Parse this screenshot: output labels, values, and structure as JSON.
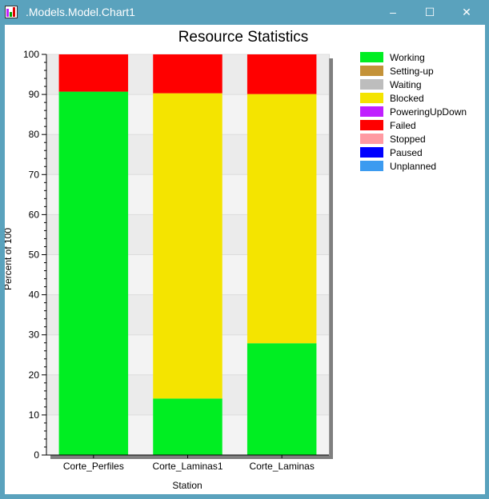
{
  "window": {
    "title": ".Models.Model.Chart1",
    "minimize_glyph": "–",
    "maximize_glyph": "☐",
    "close_glyph": "✕"
  },
  "chart_data": {
    "type": "bar",
    "stacked": true,
    "title": "Resource Statistics",
    "xlabel": "Station",
    "ylabel": "Percent of 100",
    "ylim": [
      0,
      100
    ],
    "yticks": [
      0,
      10,
      20,
      30,
      40,
      50,
      60,
      70,
      80,
      90,
      100
    ],
    "categories": [
      "Corte_Perfiles",
      "Corte_Laminas1",
      "Corte_Laminas"
    ],
    "series": [
      {
        "name": "Working",
        "color": "#00ee22",
        "values": [
          90.7,
          14.1,
          27.9
        ]
      },
      {
        "name": "Setting-up",
        "color": "#c49238",
        "values": [
          0,
          0,
          0
        ]
      },
      {
        "name": "Waiting",
        "color": "#bdbdbd",
        "values": [
          0,
          0,
          0
        ]
      },
      {
        "name": "Blocked",
        "color": "#f4e400",
        "values": [
          0,
          76.2,
          62.2
        ]
      },
      {
        "name": "PoweringUpDown",
        "color": "#c01fff",
        "values": [
          0,
          0,
          0
        ]
      },
      {
        "name": "Failed",
        "color": "#ff0000",
        "values": [
          9.3,
          9.7,
          9.9
        ]
      },
      {
        "name": "Stopped",
        "color": "#ff9aa2",
        "values": [
          0,
          0,
          0
        ]
      },
      {
        "name": "Paused",
        "color": "#0000ff",
        "values": [
          0,
          0,
          0
        ]
      },
      {
        "name": "Unplanned",
        "color": "#3c9bf0",
        "values": [
          0,
          0,
          0
        ]
      }
    ],
    "grid": true,
    "legend_position": "right"
  }
}
